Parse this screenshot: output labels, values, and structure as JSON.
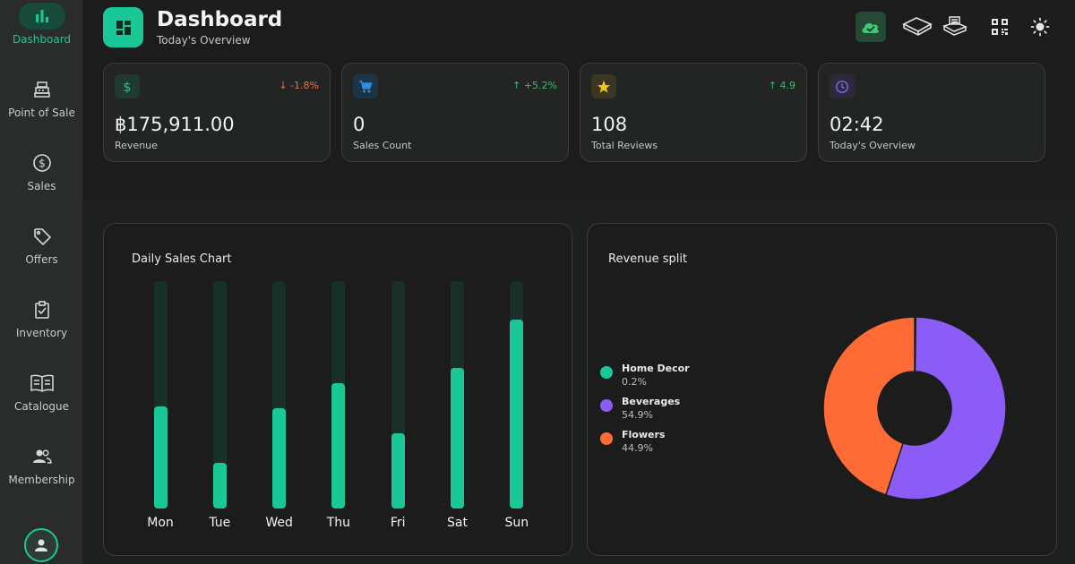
{
  "sidebar": {
    "items": [
      {
        "label": "Dashboard",
        "icon": "bar-chart-icon",
        "active": true
      },
      {
        "label": "Point of Sale",
        "icon": "cash-register-icon"
      },
      {
        "label": "Sales",
        "icon": "dollar-circle-icon"
      },
      {
        "label": "Offers",
        "icon": "tag-icon"
      },
      {
        "label": "Inventory",
        "icon": "clipboard-check-icon"
      },
      {
        "label": "Catalogue",
        "icon": "open-book-icon"
      },
      {
        "label": "Membership",
        "icon": "users-icon"
      }
    ],
    "avatar_icon": "user-icon"
  },
  "header": {
    "title": "Dashboard",
    "subtitle": "Today's Overview",
    "actions": [
      "cloud-sync-icon",
      "cash-drawer-icon",
      "receipt-printer-icon",
      "qr-code-icon",
      "sun-icon"
    ]
  },
  "stats": [
    {
      "value": "฿175,911.00",
      "label": "Revenue",
      "trend": "↓ -1.8%",
      "trend_color": "#e8704a",
      "icon": "dollar-icon",
      "icon_color": "#19c896",
      "icon_bg": "#1f3a2e"
    },
    {
      "value": "0",
      "label": "Sales Count",
      "trend": "↑ +5.2%",
      "trend_color": "#3fb96a",
      "icon": "cart-icon",
      "icon_color": "#2f8fe0",
      "icon_bg": "#1d3346"
    },
    {
      "value": "108",
      "label": "Total Reviews",
      "trend": "↑ 4.9",
      "trend_color": "#3fb96a",
      "icon": "star-icon",
      "icon_color": "#f5c518",
      "icon_bg": "#3a3622"
    },
    {
      "value": "02:42",
      "label": "Today's Overview",
      "trend": "",
      "trend_color": "#3fb96a",
      "icon": "clock-icon",
      "icon_color": "#7d5bd8",
      "icon_bg": "#2c2a3a"
    }
  ],
  "daily_sales": {
    "title": "Daily Sales Chart"
  },
  "revenue_split": {
    "title": "Revenue split"
  },
  "chart_data": [
    {
      "type": "bar",
      "title": "Daily Sales Chart",
      "categories": [
        "Mon",
        "Tue",
        "Wed",
        "Thu",
        "Fri",
        "Sat",
        "Sun"
      ],
      "values": [
        45,
        20,
        44,
        55,
        33,
        62,
        83
      ],
      "ylim": [
        0,
        100
      ],
      "color": "#19c896",
      "track_color": "#183028"
    },
    {
      "type": "pie",
      "title": "Revenue split",
      "donut": true,
      "legend_position": "left",
      "slices": [
        {
          "name": "Home Decor",
          "label": "0.2%",
          "value": 0.2,
          "color": "#19c896"
        },
        {
          "name": "Beverages",
          "label": "54.9%",
          "value": 54.9,
          "color": "#8b5cf6"
        },
        {
          "name": "Flowers",
          "label": "44.9%",
          "value": 44.9,
          "color": "#ff6b35"
        }
      ]
    }
  ]
}
